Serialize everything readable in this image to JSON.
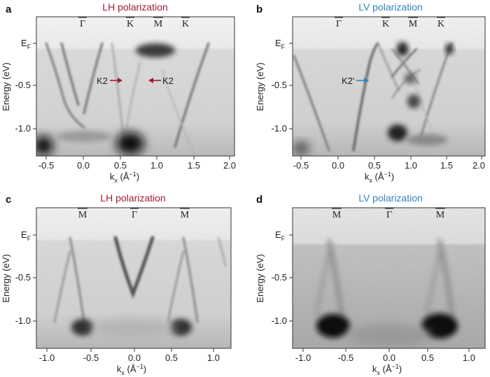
{
  "figure": {
    "panels": [
      {
        "label": "a",
        "title": "LH polarization",
        "title_color": "#9e1b32",
        "symmetry_points": [
          "Γ",
          "K",
          "M",
          "K"
        ],
        "annotations": [
          {
            "text": "K2",
            "arrow_color": "#9e1b32"
          },
          {
            "text": "K2",
            "arrow_color": "#9e1b32"
          }
        ],
        "ylabel": "Energy (eV)",
        "ef_label": "E",
        "ef_sub": "F",
        "yticks": [
          "-0.5",
          "-1.0"
        ],
        "xlabel_main": "k",
        "xlabel_sub": "x",
        "xlabel_unit": " (Å",
        "xlabel_sup": "−1",
        "xlabel_close": ")",
        "xticks": [
          "-0.5",
          "0.0",
          "0.5",
          "1.0",
          "1.5",
          "2.0"
        ]
      },
      {
        "label": "b",
        "title": "LV polarization",
        "title_color": "#2f84b8",
        "symmetry_points": [
          "Γ",
          "K",
          "M",
          "K"
        ],
        "annotations": [
          {
            "text": "K2'",
            "arrow_color": "#2f84b8"
          }
        ],
        "ylabel": "Energy (eV)",
        "ef_label": "E",
        "ef_sub": "F",
        "yticks": [
          "-0.5",
          "-1.0"
        ],
        "xlabel_main": "k",
        "xlabel_sub": "x",
        "xlabel_unit": " (Å",
        "xlabel_sup": "−1",
        "xlabel_close": ")",
        "xticks": [
          "-0.5",
          "0.0",
          "0.5",
          "1.0",
          "1.5",
          "2.0"
        ]
      },
      {
        "label": "c",
        "title": "LH polarization",
        "title_color": "#9e1b32",
        "symmetry_points": [
          "M",
          "Γ",
          "M"
        ],
        "annotations": [],
        "ylabel": "Energy (eV)",
        "ef_label": "E",
        "ef_sub": "F",
        "yticks": [
          "-0.5",
          "-1.0"
        ],
        "xlabel_main": "k",
        "xlabel_sub": "x",
        "xlabel_unit": " (Å",
        "xlabel_sup": "−1",
        "xlabel_close": ")",
        "xticks": [
          "-1.0",
          "-0.5",
          "0.0",
          "0.5",
          "1.0"
        ]
      },
      {
        "label": "d",
        "title": "LV polarization",
        "title_color": "#2f84b8",
        "symmetry_points": [
          "M",
          "Γ",
          "M"
        ],
        "annotations": [],
        "ylabel": "Energy (eV)",
        "ef_label": "E",
        "ef_sub": "F",
        "yticks": [
          "-0.5",
          "-1.0"
        ],
        "xlabel_main": "k",
        "xlabel_sub": "x",
        "xlabel_unit": " (Å",
        "xlabel_sup": "−1",
        "xlabel_close": ")",
        "xticks": [
          "-1.0",
          "-0.5",
          "0.0",
          "0.5",
          "1.0"
        ]
      }
    ]
  }
}
